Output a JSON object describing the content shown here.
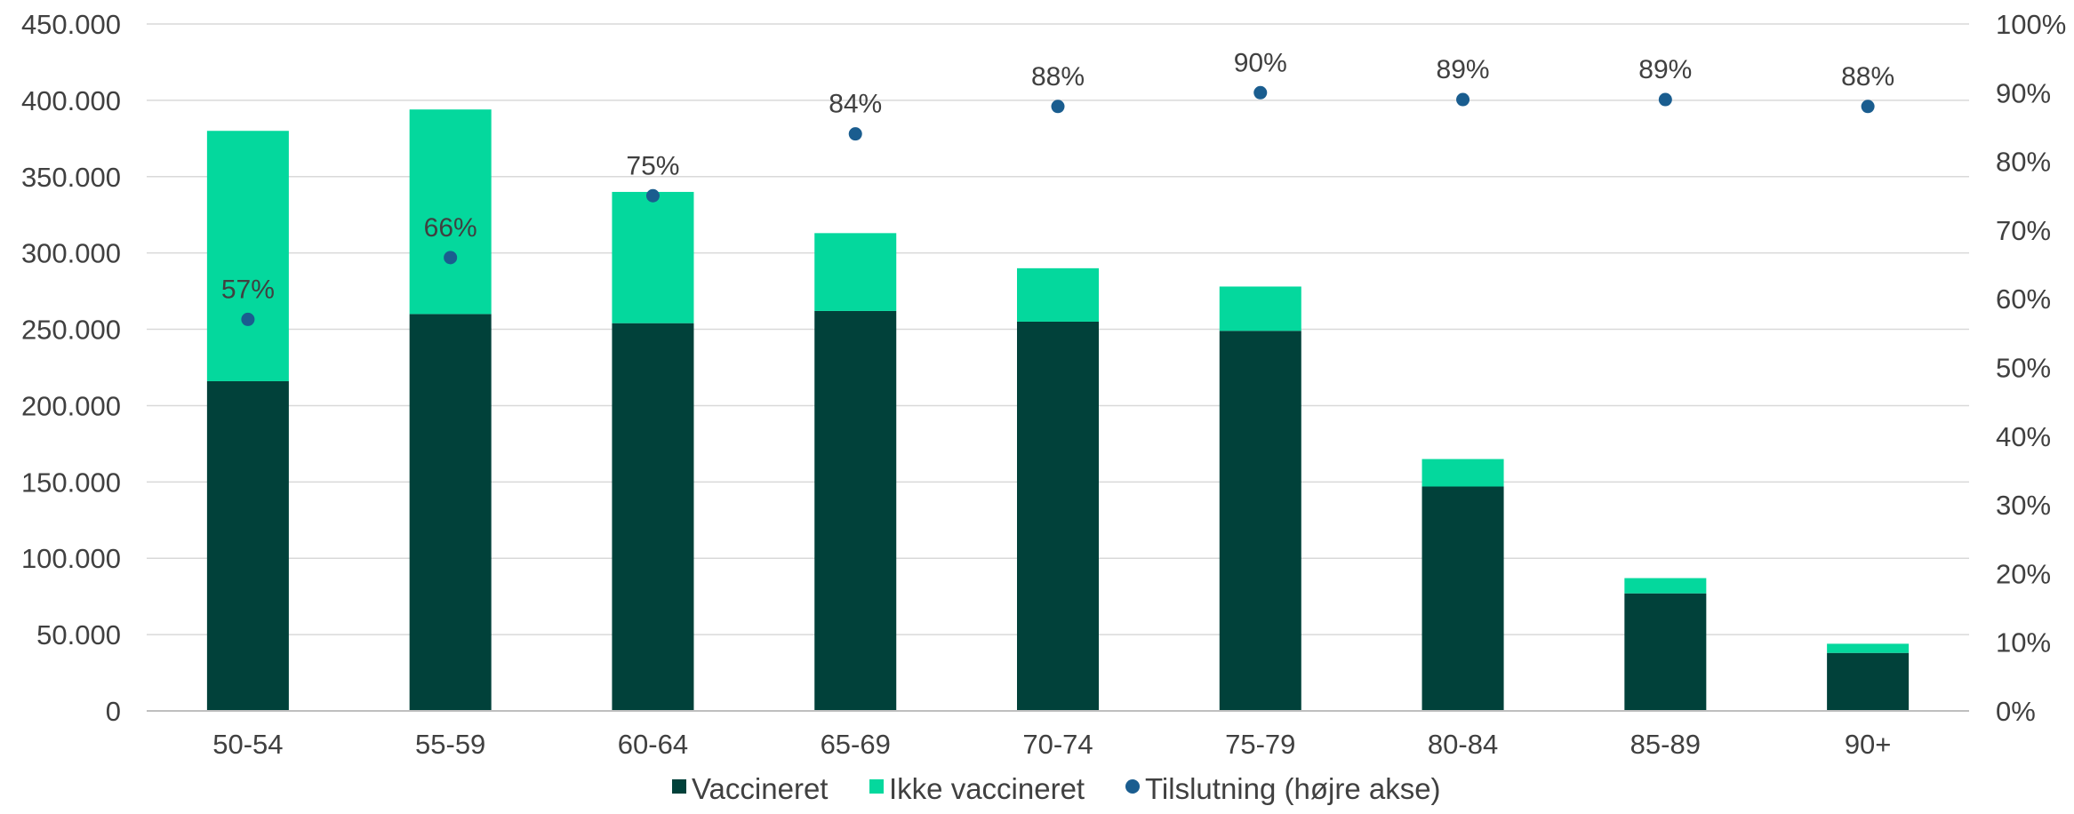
{
  "chart_data": {
    "type": "bar",
    "stacked": true,
    "categories": [
      "50-54",
      "55-59",
      "60-64",
      "65-69",
      "70-74",
      "75-79",
      "80-84",
      "85-89",
      "90+"
    ],
    "series": [
      {
        "name": "Vaccineret",
        "type": "bar",
        "axis": "left",
        "color": "#01413a",
        "values": [
          216000,
          260000,
          254000,
          262000,
          255000,
          249000,
          147000,
          77000,
          38000
        ]
      },
      {
        "name": "Ikke vaccineret",
        "type": "bar",
        "axis": "left",
        "color": "#04d89d",
        "values": [
          164000,
          134000,
          86000,
          51000,
          35000,
          29000,
          18000,
          10000,
          6000
        ]
      },
      {
        "name": "Tilslutning (højre akse)",
        "type": "scatter",
        "axis": "right",
        "color": "#1a5d8f",
        "values": [
          57,
          66,
          75,
          84,
          88,
          90,
          89,
          89,
          88
        ],
        "labels": [
          "57%",
          "66%",
          "75%",
          "84%",
          "88%",
          "90%",
          "89%",
          "89%",
          "88%"
        ]
      }
    ],
    "y_left": {
      "ylim": [
        0,
        450000
      ],
      "ticks": [
        0,
        50000,
        100000,
        150000,
        200000,
        250000,
        300000,
        350000,
        400000,
        450000
      ],
      "tick_labels": [
        "0",
        "50.000",
        "100.000",
        "150.000",
        "200.000",
        "250.000",
        "300.000",
        "350.000",
        "400.000",
        "450.000"
      ]
    },
    "y_right": {
      "ylim": [
        0,
        100
      ],
      "ticks": [
        0,
        10,
        20,
        30,
        40,
        50,
        60,
        70,
        80,
        90,
        100
      ],
      "tick_labels": [
        "0%",
        "10%",
        "20%",
        "30%",
        "40%",
        "50%",
        "60%",
        "70%",
        "80%",
        "90%",
        "100%"
      ]
    },
    "grid": true,
    "gridlines_color": "#d9d9d9",
    "legend_position": "bottom-center",
    "title": "",
    "xlabel": "",
    "ylabel": ""
  }
}
